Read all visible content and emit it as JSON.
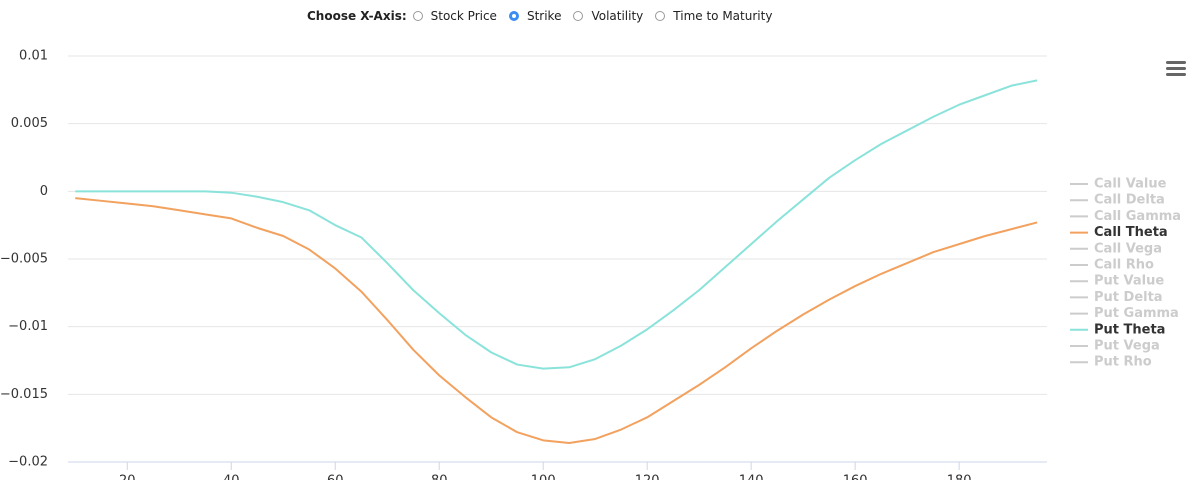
{
  "controls": {
    "label": "Choose X-Axis:",
    "options": [
      "Stock Price",
      "Strike",
      "Volatility",
      "Time to Maturity"
    ],
    "selected_index": 1
  },
  "chart_data": {
    "type": "line",
    "x": [
      10,
      15,
      20,
      25,
      30,
      35,
      40,
      45,
      50,
      55,
      60,
      65,
      70,
      75,
      80,
      85,
      90,
      95,
      100,
      105,
      110,
      115,
      120,
      125,
      130,
      135,
      140,
      145,
      150,
      155,
      160,
      165,
      170,
      175,
      180,
      185,
      190,
      195
    ],
    "xlim": [
      8.6,
      196.9
    ],
    "xticks": [
      20,
      40,
      60,
      80,
      100,
      120,
      140,
      160,
      180
    ],
    "ylim": [
      -0.02,
      0.01
    ],
    "yticks": [
      0.01,
      0.005,
      0,
      {
        "value": -0.005,
        "label": "−0.005"
      },
      {
        "value": -0.01,
        "label": "−0.01"
      },
      {
        "value": -0.015,
        "label": "−0.015"
      },
      {
        "value": -0.02,
        "label": "−0.02"
      }
    ],
    "grid": true,
    "legend": "right",
    "series": [
      {
        "name": "Call Value",
        "visible": false
      },
      {
        "name": "Call Delta",
        "visible": false
      },
      {
        "name": "Call Gamma",
        "visible": false
      },
      {
        "name": "Call Theta",
        "visible": true,
        "color": "#f2a15e",
        "values": [
          -0.0005,
          -0.0007,
          -0.0009,
          -0.0011,
          -0.0014,
          -0.0017,
          -0.002,
          -0.0027,
          -0.0033,
          -0.0043,
          -0.0057,
          -0.0074,
          -0.0095,
          -0.0117,
          -0.0136,
          -0.0152,
          -0.0167,
          -0.0178,
          -0.0184,
          -0.0186,
          -0.0183,
          -0.0176,
          -0.0167,
          -0.0155,
          -0.0143,
          -0.013,
          -0.0116,
          -0.0103,
          -0.0091,
          -0.008,
          -0.007,
          -0.0061,
          -0.0053,
          -0.0045,
          -0.0039,
          -0.0033,
          -0.0028,
          -0.0023
        ]
      },
      {
        "name": "Call Vega",
        "visible": false
      },
      {
        "name": "Call Rho",
        "visible": false
      },
      {
        "name": "Put Value",
        "visible": false
      },
      {
        "name": "Put Delta",
        "visible": false
      },
      {
        "name": "Put Gamma",
        "visible": false
      },
      {
        "name": "Put Theta",
        "visible": true,
        "color": "#8ae3da",
        "values": [
          0,
          0,
          0,
          0,
          0,
          0,
          -0.0001,
          -0.0004,
          -0.0008,
          -0.0014,
          -0.0025,
          -0.0034,
          -0.0053,
          -0.0073,
          -0.009,
          -0.0106,
          -0.0119,
          -0.0128,
          -0.0131,
          -0.013,
          -0.0124,
          -0.0114,
          -0.0102,
          -0.0088,
          -0.0073,
          -0.0056,
          -0.0039,
          -0.0022,
          -0.0006,
          0.001,
          0.0023,
          0.0035,
          0.0045,
          0.0055,
          0.0064,
          0.0071,
          0.0078,
          0.0082
        ]
      },
      {
        "name": "Put Vega",
        "visible": false
      },
      {
        "name": "Put Rho",
        "visible": false
      }
    ]
  }
}
